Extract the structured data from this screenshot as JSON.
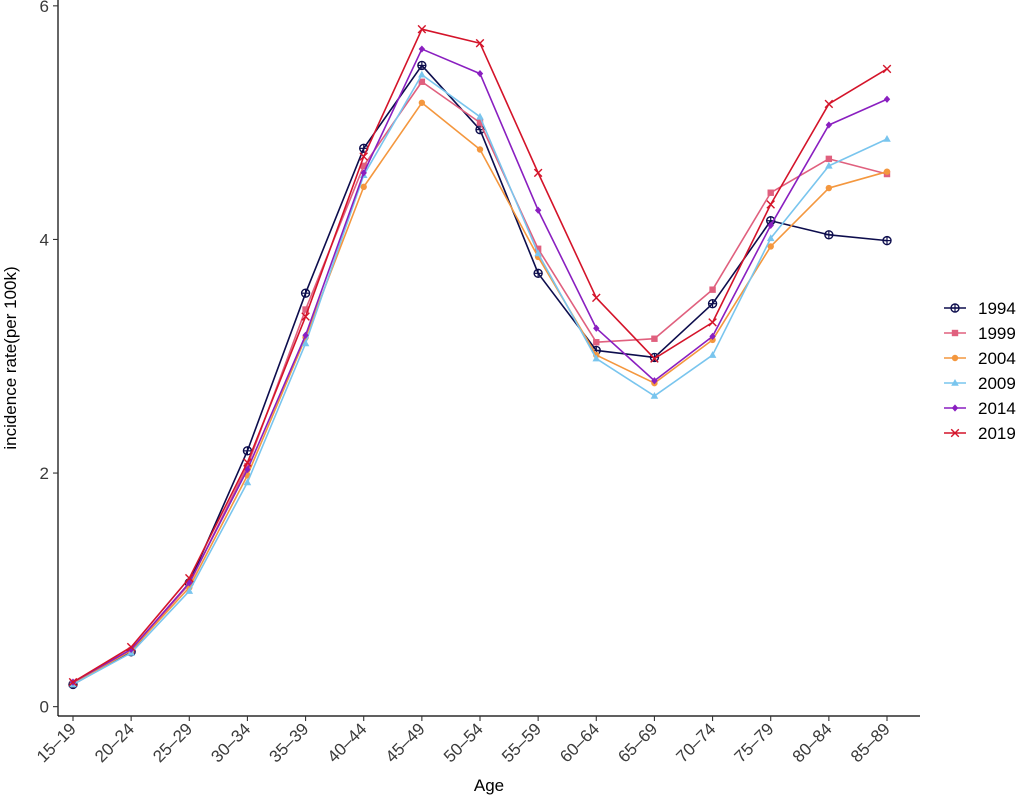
{
  "chart_data": {
    "type": "line",
    "title": "",
    "xlabel": "Age",
    "ylabel": "incidence rate(per 100k)",
    "categories": [
      "15–19",
      "20–24",
      "25–29",
      "30–34",
      "35–39",
      "40–44",
      "45–49",
      "50–54",
      "55–59",
      "60–64",
      "65–69",
      "70–74",
      "75–79",
      "80–84",
      "85–89"
    ],
    "y_ticks": [
      0,
      2,
      4,
      6
    ],
    "y_tick_labels": [
      "0",
      "2",
      "4",
      "6"
    ],
    "ylim": [
      -0.08,
      6.05
    ],
    "grid": false,
    "legend_position": "right",
    "series": [
      {
        "name": "1994",
        "color": "#0d0d4d",
        "marker": "circle-cross",
        "values": [
          0.19,
          0.47,
          1.06,
          2.19,
          3.54,
          4.78,
          5.49,
          4.94,
          3.71,
          3.05,
          2.99,
          3.45,
          4.16,
          4.04,
          3.99
        ]
      },
      {
        "name": "1999",
        "color": "#e0607e",
        "marker": "square",
        "values": [
          0.2,
          0.48,
          1.05,
          2.06,
          3.4,
          4.63,
          5.35,
          5.0,
          3.92,
          3.12,
          3.15,
          3.57,
          4.4,
          4.69,
          4.56
        ]
      },
      {
        "name": "2004",
        "color": "#f4973e",
        "marker": "circle",
        "values": [
          0.2,
          0.48,
          1.02,
          1.98,
          3.16,
          4.45,
          5.17,
          4.77,
          3.85,
          3.01,
          2.77,
          3.14,
          3.94,
          4.44,
          4.58
        ]
      },
      {
        "name": "2009",
        "color": "#79c5ee",
        "marker": "triangle",
        "values": [
          0.19,
          0.46,
          0.99,
          1.92,
          3.11,
          4.55,
          5.41,
          5.05,
          3.88,
          2.98,
          2.66,
          3.01,
          4.01,
          4.63,
          4.86
        ]
      },
      {
        "name": "2014",
        "color": "#8a1fc0",
        "marker": "diamond",
        "values": [
          0.21,
          0.49,
          1.06,
          2.03,
          3.18,
          4.57,
          5.63,
          5.42,
          4.25,
          3.24,
          2.79,
          3.17,
          4.12,
          4.98,
          5.2
        ]
      },
      {
        "name": "2019",
        "color": "#d4142a",
        "marker": "x",
        "values": [
          0.21,
          0.51,
          1.1,
          2.09,
          3.34,
          4.71,
          5.8,
          5.68,
          4.57,
          3.5,
          2.98,
          3.29,
          4.3,
          5.16,
          5.46
        ]
      }
    ]
  }
}
